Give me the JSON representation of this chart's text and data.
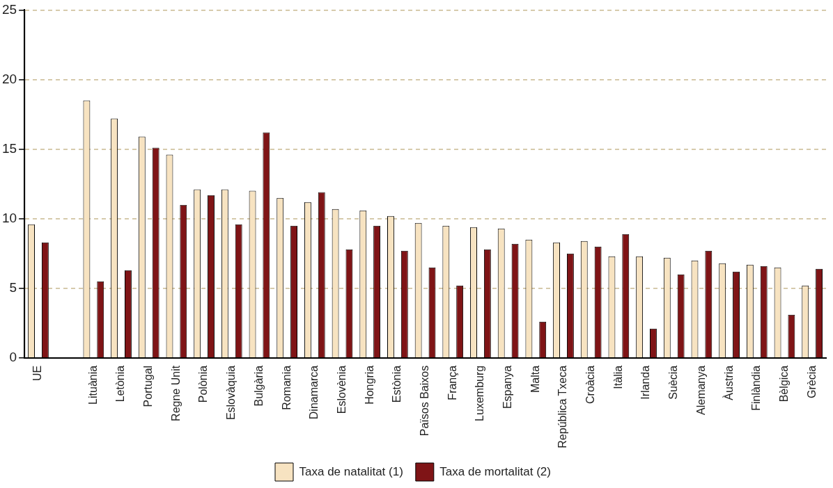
{
  "chart_data": {
    "type": "bar",
    "categories": [
      "UE",
      null,
      "Lituània",
      "Letònia",
      "Portugal",
      "Regne Unit",
      "Polònia",
      "Eslovàquia",
      "Bulgària",
      "Romania",
      "Dinamarca",
      "Eslovènia",
      "Hongria",
      "Estònia",
      "Països Baixos",
      "França",
      "Luxemburg",
      "Espanya",
      "Malta",
      "República Txeca",
      "Croàcia",
      "Itàlia",
      "Irlanda",
      "Suècia",
      "Alemanya",
      "Àustria",
      "Finlàndia",
      "Bèlgica",
      "Grècia"
    ],
    "series": [
      {
        "name": "Taxa de natalitat (1)",
        "color": "#f7e3c1",
        "values": [
          9.6,
          null,
          18.5,
          17.2,
          15.9,
          14.6,
          12.1,
          12.1,
          12.0,
          11.5,
          11.2,
          10.7,
          10.6,
          10.2,
          9.7,
          9.5,
          9.4,
          9.3,
          8.5,
          8.3,
          8.4,
          7.3,
          7.3,
          7.2,
          7.0,
          6.8,
          6.7,
          6.5,
          5.2
        ]
      },
      {
        "name": "Taxa de mortalitat (2)",
        "color": "#7f1416",
        "values": [
          8.3,
          null,
          5.5,
          6.3,
          15.1,
          11.0,
          11.7,
          9.6,
          16.2,
          9.5,
          11.9,
          7.8,
          9.5,
          7.7,
          6.5,
          5.2,
          7.8,
          8.2,
          2.6,
          7.5,
          8.0,
          8.9,
          2.1,
          6.0,
          7.7,
          6.2,
          6.6,
          3.1,
          6.4
        ]
      }
    ],
    "ylim": [
      0,
      25
    ],
    "yticks": [
      0,
      5,
      10,
      15,
      20,
      25
    ],
    "grid": "y",
    "legend": "bottom"
  }
}
